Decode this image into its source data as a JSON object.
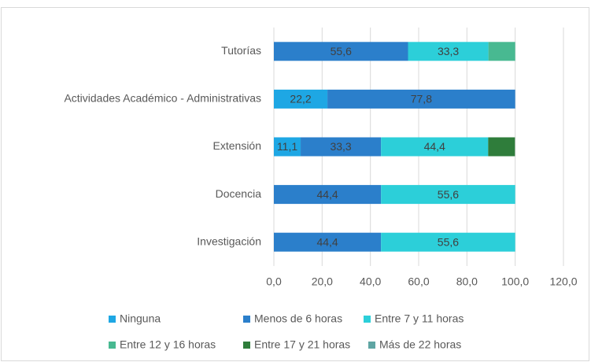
{
  "chart_data": {
    "type": "stacked-barh",
    "categories": [
      "Tutorías",
      "Actividades Académico - Administrativas",
      "Extensión",
      "Docencia",
      "Investigación"
    ],
    "series": [
      {
        "name": "Ninguna",
        "color": "#1ea7e4",
        "values": [
          null,
          22.2,
          11.1,
          null,
          null
        ],
        "value_labels": [
          null,
          "22,2",
          "11,1",
          null,
          null
        ]
      },
      {
        "name": "Menos de 6 horas",
        "color": "#2b7fcb",
        "values": [
          55.6,
          77.8,
          33.3,
          44.4,
          44.4
        ],
        "value_labels": [
          "55,6",
          "77,8",
          "33,3",
          "44,4",
          "44,4"
        ]
      },
      {
        "name": "Entre 7 y 11 horas",
        "color": "#2ccfd9",
        "values": [
          33.3,
          null,
          44.4,
          55.6,
          55.6
        ],
        "value_labels": [
          "33,3",
          null,
          "44,4",
          "55,6",
          "55,6"
        ]
      },
      {
        "name": "Entre 12 y 16 horas",
        "color": "#48b991",
        "values": [
          11.1,
          null,
          null,
          null,
          null
        ],
        "value_labels": [
          null,
          null,
          null,
          null,
          null
        ]
      },
      {
        "name": "Entre 17 y 21 horas",
        "color": "#2f7d3b",
        "values": [
          null,
          null,
          11.1,
          null,
          null
        ],
        "value_labels": [
          null,
          null,
          null,
          null,
          null
        ]
      },
      {
        "name": "Más de 22 horas",
        "color": "#5fa5a3",
        "values": [
          null,
          null,
          null,
          null,
          null
        ],
        "value_labels": [
          null,
          null,
          null,
          null,
          null
        ]
      }
    ],
    "xlim": [
      0,
      120
    ],
    "xticks": [
      {
        "value": 0,
        "label": "0,0"
      },
      {
        "value": 20,
        "label": "20,0"
      },
      {
        "value": 40,
        "label": "40,0"
      },
      {
        "value": 60,
        "label": "60,0"
      },
      {
        "value": 80,
        "label": "80,0"
      },
      {
        "value": 100,
        "label": "100,0"
      },
      {
        "value": 120,
        "label": "120,0"
      }
    ],
    "grid": true,
    "legend": "bottom"
  }
}
